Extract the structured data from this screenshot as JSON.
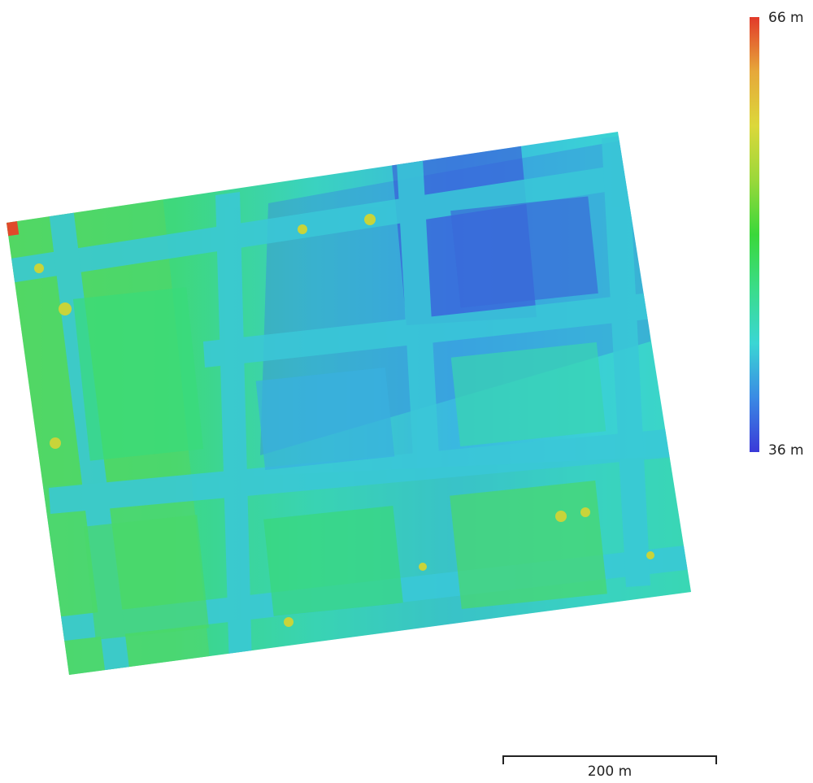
{
  "legend": {
    "max_label": "66 m",
    "min_label": "36 m",
    "colors": [
      "#e23a2a",
      "#e6a83a",
      "#dcd83a",
      "#9ad83a",
      "#3ad83a",
      "#3adc8a",
      "#3ad6d4",
      "#3a8ae4",
      "#3a3ad8"
    ]
  },
  "scale_bar": {
    "label": "200 m"
  }
}
